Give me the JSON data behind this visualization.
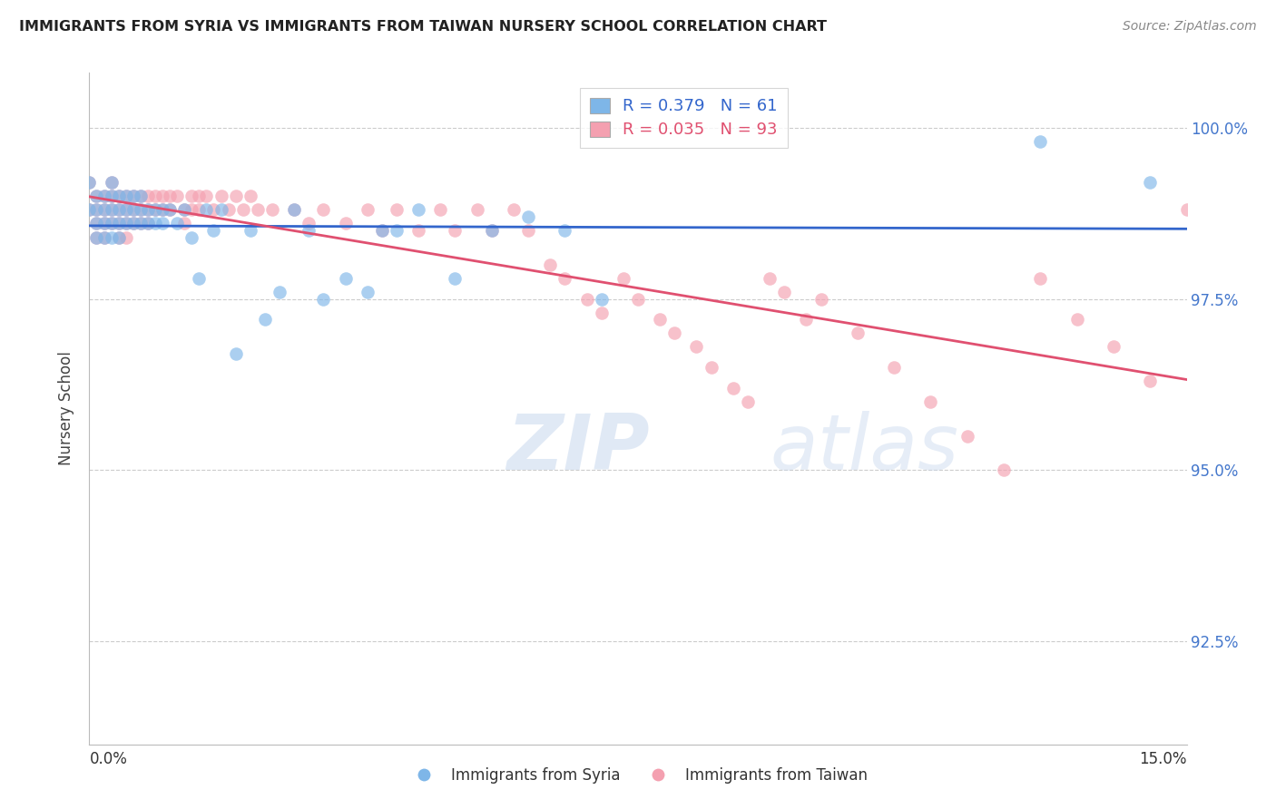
{
  "title": "IMMIGRANTS FROM SYRIA VS IMMIGRANTS FROM TAIWAN NURSERY SCHOOL CORRELATION CHART",
  "source": "Source: ZipAtlas.com",
  "ylabel": "Nursery School",
  "ytick_labels": [
    "100.0%",
    "97.5%",
    "95.0%",
    "92.5%"
  ],
  "ytick_values": [
    1.0,
    0.975,
    0.95,
    0.925
  ],
  "xmin": 0.0,
  "xmax": 0.15,
  "ymin": 0.91,
  "ymax": 1.008,
  "color_syria": "#7EB6E8",
  "color_taiwan": "#F4A0B0",
  "color_line_syria": "#3366CC",
  "color_line_taiwan": "#E05070",
  "R_syria": "0.379",
  "N_syria": "61",
  "R_taiwan": "0.035",
  "N_taiwan": "93",
  "syria_x": [
    0.0,
    0.0,
    0.001,
    0.001,
    0.001,
    0.001,
    0.002,
    0.002,
    0.002,
    0.002,
    0.003,
    0.003,
    0.003,
    0.003,
    0.003,
    0.004,
    0.004,
    0.004,
    0.004,
    0.005,
    0.005,
    0.005,
    0.006,
    0.006,
    0.006,
    0.007,
    0.007,
    0.007,
    0.008,
    0.008,
    0.009,
    0.009,
    0.01,
    0.01,
    0.011,
    0.012,
    0.013,
    0.014,
    0.015,
    0.016,
    0.017,
    0.018,
    0.02,
    0.022,
    0.024,
    0.026,
    0.028,
    0.03,
    0.032,
    0.035,
    0.038,
    0.04,
    0.042,
    0.045,
    0.05,
    0.055,
    0.06,
    0.065,
    0.07,
    0.13,
    0.145
  ],
  "syria_y": [
    0.992,
    0.988,
    0.99,
    0.988,
    0.986,
    0.984,
    0.99,
    0.988,
    0.986,
    0.984,
    0.992,
    0.99,
    0.988,
    0.986,
    0.984,
    0.99,
    0.988,
    0.986,
    0.984,
    0.99,
    0.988,
    0.986,
    0.99,
    0.988,
    0.986,
    0.99,
    0.988,
    0.986,
    0.988,
    0.986,
    0.988,
    0.986,
    0.988,
    0.986,
    0.988,
    0.986,
    0.988,
    0.984,
    0.978,
    0.988,
    0.985,
    0.988,
    0.967,
    0.985,
    0.972,
    0.976,
    0.988,
    0.985,
    0.975,
    0.978,
    0.976,
    0.985,
    0.985,
    0.988,
    0.978,
    0.985,
    0.987,
    0.985,
    0.975,
    0.998,
    0.992
  ],
  "taiwan_x": [
    0.0,
    0.0,
    0.001,
    0.001,
    0.001,
    0.001,
    0.002,
    0.002,
    0.002,
    0.002,
    0.003,
    0.003,
    0.003,
    0.003,
    0.004,
    0.004,
    0.004,
    0.004,
    0.005,
    0.005,
    0.005,
    0.005,
    0.006,
    0.006,
    0.006,
    0.007,
    0.007,
    0.007,
    0.008,
    0.008,
    0.008,
    0.009,
    0.009,
    0.01,
    0.01,
    0.011,
    0.011,
    0.012,
    0.013,
    0.013,
    0.014,
    0.014,
    0.015,
    0.015,
    0.016,
    0.017,
    0.018,
    0.019,
    0.02,
    0.021,
    0.022,
    0.023,
    0.025,
    0.028,
    0.03,
    0.032,
    0.035,
    0.038,
    0.04,
    0.042,
    0.045,
    0.048,
    0.05,
    0.053,
    0.055,
    0.058,
    0.06,
    0.063,
    0.065,
    0.068,
    0.07,
    0.073,
    0.075,
    0.078,
    0.08,
    0.083,
    0.085,
    0.088,
    0.09,
    0.093,
    0.095,
    0.098,
    0.1,
    0.105,
    0.11,
    0.115,
    0.12,
    0.125,
    0.13,
    0.135,
    0.14,
    0.145,
    0.15
  ],
  "taiwan_y": [
    0.992,
    0.988,
    0.99,
    0.988,
    0.986,
    0.984,
    0.99,
    0.988,
    0.986,
    0.984,
    0.992,
    0.99,
    0.988,
    0.986,
    0.99,
    0.988,
    0.986,
    0.984,
    0.99,
    0.988,
    0.986,
    0.984,
    0.99,
    0.988,
    0.986,
    0.99,
    0.988,
    0.986,
    0.99,
    0.988,
    0.986,
    0.99,
    0.988,
    0.99,
    0.988,
    0.99,
    0.988,
    0.99,
    0.988,
    0.986,
    0.99,
    0.988,
    0.99,
    0.988,
    0.99,
    0.988,
    0.99,
    0.988,
    0.99,
    0.988,
    0.99,
    0.988,
    0.988,
    0.988,
    0.986,
    0.988,
    0.986,
    0.988,
    0.985,
    0.988,
    0.985,
    0.988,
    0.985,
    0.988,
    0.985,
    0.988,
    0.985,
    0.98,
    0.978,
    0.975,
    0.973,
    0.978,
    0.975,
    0.972,
    0.97,
    0.968,
    0.965,
    0.962,
    0.96,
    0.978,
    0.976,
    0.972,
    0.975,
    0.97,
    0.965,
    0.96,
    0.955,
    0.95,
    0.978,
    0.972,
    0.968,
    0.963,
    0.988
  ]
}
